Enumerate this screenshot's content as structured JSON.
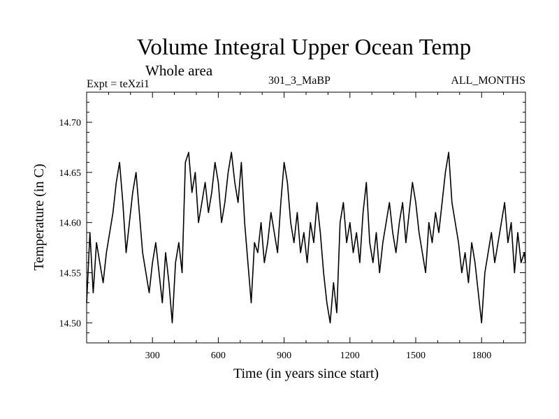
{
  "header": {
    "title": "Volume Integral Upper Ocean Temp",
    "subtitle": "Whole area",
    "expt": "Expt = teXzi1",
    "run": "301_3_MaBP",
    "months": "ALL_MONTHS"
  },
  "chart_data": {
    "type": "line",
    "title": "Volume Integral Upper Ocean Temp",
    "xlabel": "Time (in years since start)",
    "ylabel": "Temperature (in C)",
    "xlim": [
      0,
      2000
    ],
    "ylim": [
      14.48,
      14.73
    ],
    "xticks": [
      300,
      600,
      900,
      1200,
      1500,
      1800
    ],
    "xtick_labels": [
      "300",
      "600",
      "900",
      "1200",
      "1500",
      "1800"
    ],
    "yticks": [
      14.5,
      14.55,
      14.6,
      14.65,
      14.7
    ],
    "ytick_labels": [
      "14.50",
      "14.55",
      "14.60",
      "14.65",
      "14.70"
    ],
    "grid": false,
    "line_color": "#000000",
    "series": [
      {
        "name": "teXzi1",
        "x": [
          0,
          15,
          30,
          45,
          60,
          75,
          90,
          105,
          120,
          135,
          150,
          165,
          180,
          195,
          210,
          225,
          240,
          255,
          270,
          285,
          300,
          315,
          330,
          345,
          360,
          375,
          390,
          405,
          420,
          435,
          450,
          465,
          480,
          495,
          510,
          525,
          540,
          555,
          570,
          585,
          600,
          615,
          630,
          645,
          660,
          675,
          690,
          705,
          720,
          735,
          750,
          765,
          780,
          795,
          810,
          825,
          840,
          855,
          870,
          885,
          900,
          915,
          930,
          945,
          960,
          975,
          990,
          1005,
          1020,
          1035,
          1050,
          1065,
          1080,
          1095,
          1110,
          1125,
          1140,
          1155,
          1170,
          1185,
          1200,
          1215,
          1230,
          1245,
          1260,
          1275,
          1290,
          1305,
          1320,
          1335,
          1350,
          1365,
          1380,
          1395,
          1410,
          1425,
          1440,
          1455,
          1470,
          1485,
          1500,
          1515,
          1530,
          1545,
          1560,
          1575,
          1590,
          1605,
          1620,
          1635,
          1650,
          1665,
          1680,
          1695,
          1710,
          1725,
          1740,
          1755,
          1770,
          1785,
          1800,
          1815,
          1830,
          1845,
          1860,
          1875,
          1890,
          1905,
          1920,
          1935,
          1950,
          1965,
          1980,
          1995,
          2000
        ],
        "values": [
          14.52,
          14.59,
          14.53,
          14.58,
          14.56,
          14.54,
          14.57,
          14.59,
          14.61,
          14.64,
          14.66,
          14.62,
          14.57,
          14.6,
          14.63,
          14.65,
          14.61,
          14.57,
          14.55,
          14.53,
          14.56,
          14.58,
          14.55,
          14.52,
          14.57,
          14.54,
          14.5,
          14.56,
          14.58,
          14.55,
          14.66,
          14.67,
          14.63,
          14.65,
          14.6,
          14.62,
          14.64,
          14.61,
          14.63,
          14.66,
          14.64,
          14.6,
          14.62,
          14.65,
          14.67,
          14.64,
          14.62,
          14.66,
          14.6,
          14.56,
          14.52,
          14.58,
          14.57,
          14.6,
          14.56,
          14.58,
          14.61,
          14.59,
          14.57,
          14.62,
          14.66,
          14.64,
          14.6,
          14.58,
          14.61,
          14.57,
          14.59,
          14.56,
          14.6,
          14.58,
          14.62,
          14.59,
          14.55,
          14.52,
          14.5,
          14.54,
          14.51,
          14.6,
          14.62,
          14.58,
          14.6,
          14.57,
          14.59,
          14.56,
          14.61,
          14.64,
          14.58,
          14.56,
          14.59,
          14.55,
          14.58,
          14.6,
          14.62,
          14.59,
          14.57,
          14.6,
          14.62,
          14.58,
          14.61,
          14.64,
          14.62,
          14.59,
          14.57,
          14.55,
          14.6,
          14.58,
          14.61,
          14.59,
          14.62,
          14.65,
          14.67,
          14.62,
          14.6,
          14.58,
          14.55,
          14.57,
          14.54,
          14.58,
          14.56,
          14.53,
          14.5,
          14.55,
          14.57,
          14.59,
          14.56,
          14.58,
          14.6,
          14.62,
          14.58,
          14.6,
          14.55,
          14.59,
          14.56,
          14.57,
          14.56
        ]
      }
    ]
  }
}
